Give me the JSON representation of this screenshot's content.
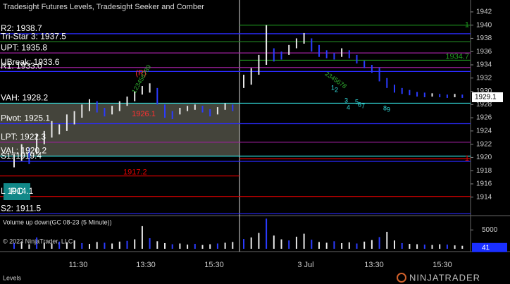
{
  "chart_data": {
    "type": "ohlc",
    "title": "Tradesight Futures Levels, Tradesight Seeker and Comber",
    "ylim": [
      1911.2,
      1943.8
    ],
    "yticks": [
      1914,
      1916,
      1918,
      1920,
      1922,
      1924,
      1926,
      1928,
      1930,
      1932,
      1934,
      1936,
      1938,
      1940,
      1942
    ],
    "last_price": 1929.1,
    "bars": {
      "high": [
        1920.5,
        1922,
        1921.5,
        1923.5,
        1924,
        1925.5,
        1925,
        1926.5,
        1927,
        1928,
        1928.8,
        1928.5,
        1927.5,
        1927.8,
        1928.5,
        1929.2,
        1930,
        1930.8,
        1931.2,
        1930.5,
        1928,
        1927,
        1927.5,
        1927.8,
        1928,
        1927.8,
        1927.3,
        1927.6,
        1928.2,
        1928,
        1932.5,
        1933.5,
        1935.5,
        1940,
        1936.5,
        1936,
        1937,
        1938,
        1938.8,
        1938,
        1937,
        1936.2,
        1935.8,
        1936.5,
        1936.2,
        1935.5,
        1934.6,
        1934,
        1933.6,
        1932,
        1931,
        1930.5,
        1930.2,
        1929.9,
        1929.8,
        1929.7,
        1929.6,
        1929.5,
        1929.6,
        1929.5
      ],
      "low": [
        1918.5,
        1919.5,
        1919,
        1920.5,
        1922,
        1923,
        1923.5,
        1924,
        1925,
        1926,
        1927,
        1926.8,
        1926.2,
        1926.5,
        1927,
        1927.8,
        1928.5,
        1929.5,
        1929.8,
        1928,
        1926,
        1925.8,
        1926.5,
        1927,
        1927.2,
        1926.8,
        1926.2,
        1926.5,
        1927.2,
        1927,
        1930.5,
        1931,
        1932.5,
        1934,
        1934.5,
        1934.8,
        1935.5,
        1936.5,
        1937.2,
        1936,
        1935.2,
        1935,
        1934.8,
        1935.2,
        1935,
        1934.2,
        1933.5,
        1932.8,
        1931.5,
        1930.5,
        1929.8,
        1929.6,
        1929.4,
        1929.2,
        1929.1,
        1929.2,
        1929.1,
        1929,
        1929.1,
        1929
      ]
    },
    "levels": [
      {
        "label": "R2: 1938.7",
        "value": 1938.7,
        "color": "#2b2bff"
      },
      {
        "label": "Tri-Star 3: 1937.5",
        "value": 1937.5,
        "color": "#1f7a1f"
      },
      {
        "label": "UPT: 1935.8",
        "value": 1935.8,
        "color": "#a020a0"
      },
      {
        "label": "UBreak: 1933.6",
        "value": 1933.6,
        "color": "#a020a0"
      },
      {
        "label": "R1: 1933.0",
        "value": 1933.0,
        "color": "#2b2bff"
      },
      {
        "label": "VAH: 1928.2",
        "value": 1928.2,
        "color": "#33e0e0"
      },
      {
        "label": "Pivot: 1925.1",
        "value": 1925.1,
        "color": "#2b2bff"
      },
      {
        "label": "LPT: 1922.3",
        "value": 1922.3,
        "color": "#a020a0"
      },
      {
        "label": "VAL: 1920.2",
        "value": 1920.2,
        "color": "#33e0e0"
      },
      {
        "label": "S1: 1919.4",
        "value": 1919.4,
        "color": "#2b2bff"
      },
      {
        "label": "L 1914.1",
        "value": 1914.1,
        "color": "#e00000"
      },
      {
        "label": "S2: 1911.5",
        "value": 1911.5,
        "color": "#2b2bff"
      }
    ],
    "day1_lines": [
      {
        "label": "1917.2",
        "value": 1917.2,
        "color": "#e00000"
      }
    ],
    "day2_lines": [
      {
        "label": "1",
        "value": 1940,
        "color": "#1f9a1f"
      },
      {
        "label": "1934.7",
        "value": 1934.7,
        "color": "#1f9a1f"
      },
      {
        "label": "1",
        "value": 1919.8,
        "color": "#e00000"
      }
    ],
    "volume": {
      "title": "Volume up down(GC 08-23 (5 Minute))",
      "ylim": [
        0,
        8600
      ],
      "yticks": [
        5000
      ],
      "last": 41,
      "values": [
        1500,
        1800,
        1200,
        3000,
        1600,
        1400,
        1900,
        1700,
        2200,
        1500,
        1300,
        1800,
        1600,
        1400,
        1900,
        2100,
        2500,
        6000,
        2800,
        2000,
        1500,
        1200,
        1400,
        1100,
        1300,
        1000,
        1200,
        1400,
        1600,
        1800,
        2600,
        3000,
        4200,
        8000,
        3500,
        2500,
        2200,
        3200,
        4000,
        2400,
        1800,
        1600,
        2000,
        1500,
        1700,
        1400,
        1900,
        2300,
        3100,
        4500,
        2200,
        1500,
        1300,
        1200,
        1100,
        1000,
        1200,
        1100,
        900,
        800
      ]
    },
    "annotations": {
      "r": "(R)",
      "red_price": "1926.1",
      "green_count": "123456789",
      "green_count2": "2345678",
      "cyan_a": "1",
      "cyan_b": "2",
      "cyan_c": "3",
      "cyan_d": "4",
      "cyan_e": "5",
      "cyan_f": "6",
      "cyan_g": "7",
      "cyan_h": "8",
      "cyan_i": "9"
    },
    "x_labels": [
      "11:30",
      "13:30",
      "15:30",
      "3 Jul",
      "13:30",
      "15:30"
    ],
    "badge": "PC",
    "copyright": "© 2023 NinjaTrader, LLC",
    "tab": "Levels",
    "logo": "NINJATRADER"
  }
}
